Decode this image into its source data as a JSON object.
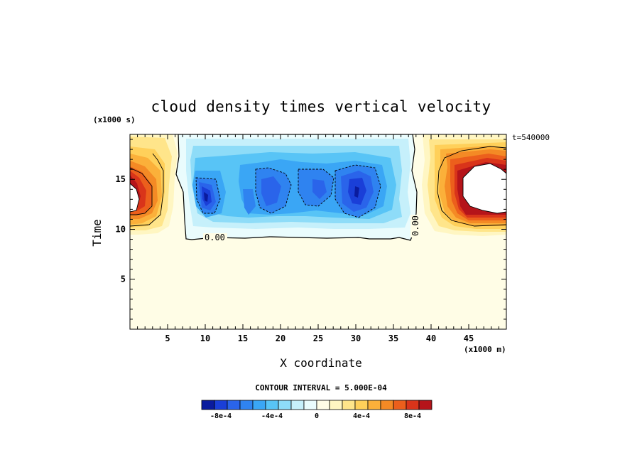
{
  "chart_data": {
    "type": "heatmap",
    "title": "cloud density times vertical velocity",
    "xlabel": "X coordinate",
    "ylabel": "Time",
    "x_unit": "(x1000 m)",
    "y_unit": "(x1000 s)",
    "time_label": "t=540000",
    "xlim": [
      0,
      50
    ],
    "ylim": [
      0,
      19.5
    ],
    "x_ticks": [
      "5",
      "10",
      "15",
      "20",
      "25",
      "30",
      "35",
      "40",
      "45"
    ],
    "y_ticks": [
      "5",
      "10",
      "15"
    ],
    "contour_interval_text": "CONTOUR INTERVAL = 5.000E-04",
    "contour_labels": [
      "0.00",
      "0.00"
    ],
    "colorbar": {
      "tick_labels": [
        "-8e-4",
        "-4e-4",
        "0",
        "4e-4",
        "8e-4"
      ],
      "colors": [
        "#0a1b9e",
        "#1a3fd8",
        "#2a64ea",
        "#2f83f0",
        "#3aa6f5",
        "#58c4f6",
        "#8edcf8",
        "#c6f0fb",
        "#eafcfd",
        "#fffde6",
        "#fff6c2",
        "#ffe58a",
        "#ffd05a",
        "#fbb03a",
        "#f48a25",
        "#ec5f1c",
        "#d9341a",
        "#b5141a"
      ]
    },
    "features": [
      {
        "kind": "negative_region",
        "x": [
          6.5,
          38.5
        ],
        "y": [
          9.5,
          19.5
        ],
        "min_value": -0.0009
      },
      {
        "kind": "positive_cell",
        "x": [
          0,
          7
        ],
        "y": [
          10,
          19.5
        ],
        "max_value": 0.0009
      },
      {
        "kind": "positive_cell",
        "x": [
          38.5,
          50
        ],
        "y": [
          10,
          19.5
        ],
        "max_value": 0.0009
      }
    ]
  }
}
